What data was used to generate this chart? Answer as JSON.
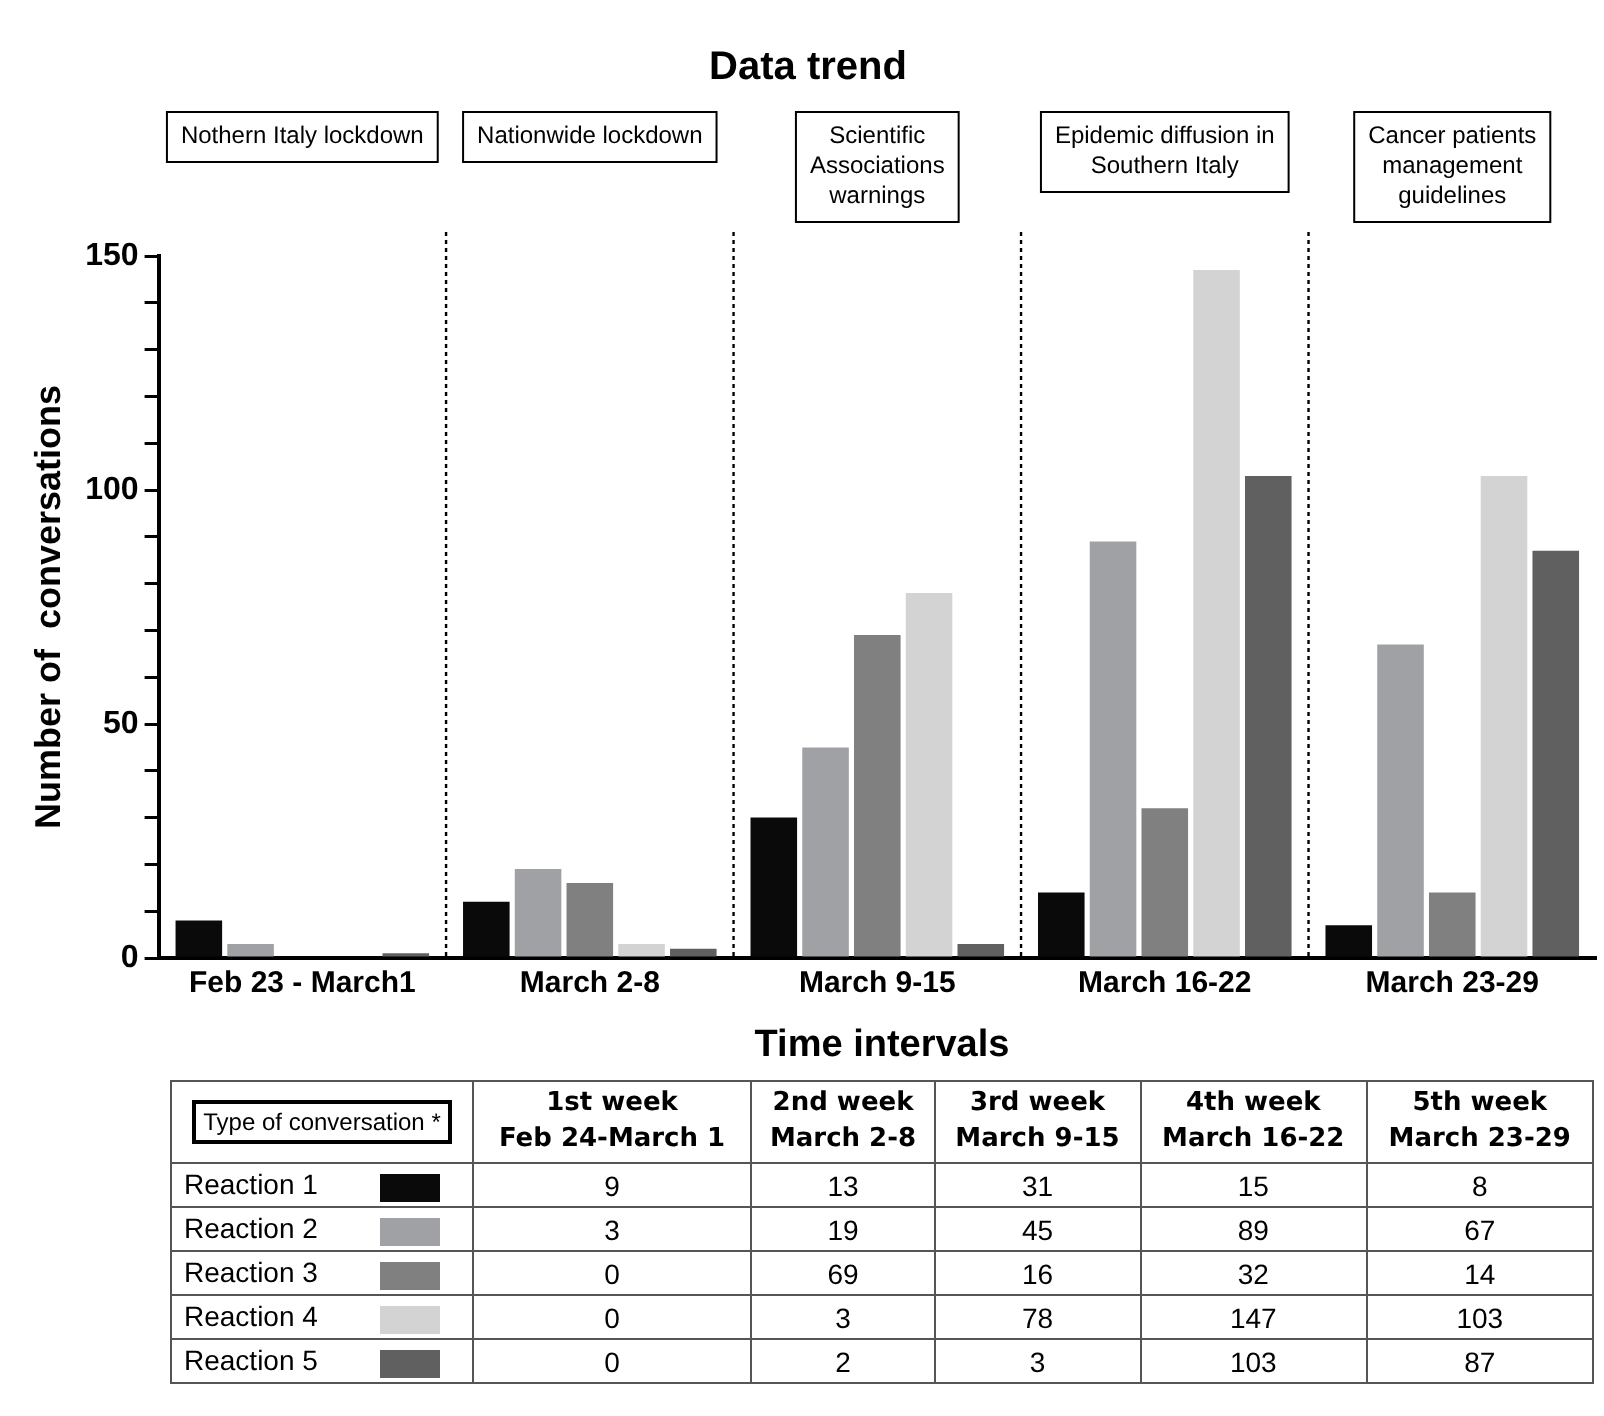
{
  "chart_data": [
    {
      "type": "bar",
      "title": "Data trend",
      "xlabel": "Time intervals",
      "ylabel": "Number of  conversations",
      "categories": [
        "Feb 23 - March1",
        "March 2-8",
        "March 9-15",
        "March 16-22",
        "March 23-29"
      ],
      "series": [
        {
          "color": "#0a0a0a",
          "values": [
            8,
            12,
            30,
            14,
            7
          ]
        },
        {
          "color": "#a0a1a5",
          "values": [
            3,
            19,
            45,
            89,
            67
          ]
        },
        {
          "color": "#808080",
          "values": [
            0,
            16,
            69,
            32,
            14
          ]
        },
        {
          "color": "#d3d3d3",
          "values": [
            0,
            3,
            78,
            147,
            103
          ]
        },
        {
          "color": "#606060",
          "values": [
            1,
            2,
            3,
            103,
            87
          ]
        }
      ],
      "ylim": [
        0,
        150
      ],
      "yticks": [
        0,
        {
          "value": 10,
          "label": null
        },
        {
          "value": 20,
          "label": null
        },
        {
          "value": 30,
          "label": null
        },
        {
          "value": 40,
          "label": null
        },
        50,
        {
          "value": 60,
          "label": null
        },
        {
          "value": 70,
          "label": null
        },
        {
          "value": 80,
          "label": null
        },
        {
          "value": 90,
          "label": null
        },
        100,
        {
          "value": 110,
          "label": null
        },
        {
          "value": 120,
          "label": null
        },
        {
          "value": 130,
          "label": null
        },
        {
          "value": 140,
          "label": null
        },
        150
      ],
      "grid": false,
      "annotations": [
        "Nothern Italy lockdown",
        "Nationwide lockdown",
        "Scientific Associations warnings",
        "Epidemic diffusion in Southern Italy",
        "Cancer patients management guidelines"
      ]
    },
    {
      "type": "heatmap",
      "categories": [
        "1st week\nFeb 24-March 1",
        "2nd week\nMarch 2-8",
        "3rd week\nMarch 9-15",
        "4th week\nMarch 16-22",
        "5th week\nMarch 23-29"
      ],
      "y_categories": [
        "Reaction 1",
        "Reaction 2",
        "Reaction 3",
        "Reaction 4",
        "Reaction 5"
      ],
      "data_labels": true,
      "cells": [
        [
          9,
          13,
          31,
          15,
          8
        ],
        [
          3,
          19,
          45,
          89,
          67
        ],
        [
          0,
          69,
          16,
          32,
          14
        ],
        [
          0,
          3,
          78,
          147,
          103
        ],
        [
          0,
          2,
          3,
          103,
          87
        ]
      ],
      "annotations": [
        "Type of conversation *"
      ]
    }
  ]
}
